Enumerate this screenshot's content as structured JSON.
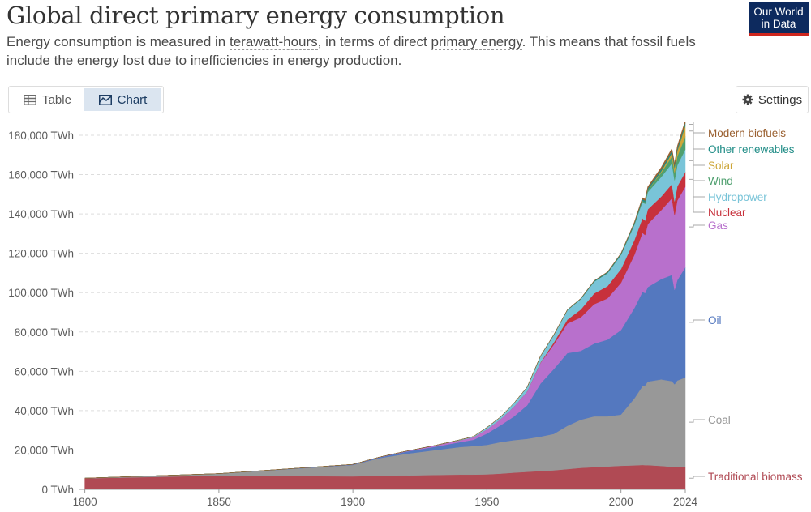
{
  "header": {
    "title": "Global direct primary energy consumption",
    "subtitle_p1": "Energy consumption is measured in ",
    "subtitle_link1": "terawatt-hours",
    "subtitle_p2": ", in terms of direct ",
    "subtitle_link2": "primary energy",
    "subtitle_p3": ". This means that fossil fuels include the energy lost due to inefficiencies in energy production.",
    "logo_line1": "Our World",
    "logo_line2": "in Data"
  },
  "tabs": [
    {
      "label": "Table",
      "icon": "table-icon",
      "active": false
    },
    {
      "label": "Chart",
      "icon": "chart-icon",
      "active": true
    }
  ],
  "settings_label": "Settings",
  "colors": {
    "traditional_biomass": "#b04a54",
    "coal": "#989898",
    "oil": "#5478bf",
    "gas": "#b870cc",
    "nuclear": "#c7313c",
    "hydropower": "#79c4d8",
    "wind": "#4fa06f",
    "solar": "#cda638",
    "other_renewables": "#1f8c86",
    "modern_biofuels": "#9a6030",
    "grid": "#dddddd",
    "axis_text": "#5b5b5b"
  },
  "chart_data": {
    "type": "area",
    "stacked": true,
    "x": [
      1800,
      1850,
      1900,
      1910,
      1920,
      1930,
      1940,
      1945,
      1950,
      1955,
      1960,
      1965,
      1970,
      1975,
      1980,
      1985,
      1990,
      1995,
      2000,
      2005,
      2008,
      2009,
      2010,
      2015,
      2019,
      2020,
      2021,
      2024
    ],
    "xticks": [
      "1800",
      "1850",
      "1900",
      "1950",
      "2000",
      "2024"
    ],
    "ylim": [
      0,
      180000
    ],
    "yticks": [
      "0 TWh",
      "20,000 TWh",
      "40,000 TWh",
      "60,000 TWh",
      "80,000 TWh",
      "100,000 TWh",
      "120,000 TWh",
      "140,000 TWh",
      "160,000 TWh",
      "180,000 TWh"
    ],
    "grid": true,
    "legend": "right (inline labels)",
    "series": [
      {
        "name": "Traditional biomass",
        "key": "traditional_biomass",
        "values": [
          5600,
          7000,
          6600,
          6900,
          7100,
          7300,
          7500,
          7500,
          7600,
          8000,
          8500,
          8900,
          9300,
          9700,
          10300,
          10900,
          11300,
          11600,
          12000,
          12200,
          12400,
          12300,
          12300,
          11900,
          11500,
          11400,
          11300,
          11400
        ]
      },
      {
        "name": "Coal",
        "key": "coal",
        "values": [
          100,
          1000,
          5800,
          9000,
          11000,
          12500,
          14000,
          14500,
          15000,
          16000,
          16500,
          16800,
          17500,
          18500,
          22000,
          24500,
          25800,
          25500,
          26000,
          34000,
          40000,
          40500,
          42500,
          44000,
          43500,
          42000,
          44000,
          45500
        ]
      },
      {
        "name": "Oil",
        "key": "oil",
        "values": [
          0,
          0,
          200,
          400,
          1100,
          1700,
          2500,
          3200,
          5800,
          8500,
          12000,
          17000,
          27000,
          33000,
          37000,
          35000,
          37000,
          39000,
          43000,
          46000,
          48000,
          47000,
          48000,
          51000,
          54000,
          48000,
          51000,
          56000
        ]
      },
      {
        "name": "Gas",
        "key": "gas",
        "values": [
          0,
          0,
          70,
          150,
          250,
          600,
          900,
          1300,
          2100,
          3000,
          4900,
          7000,
          10500,
          12500,
          15000,
          17000,
          20000,
          21000,
          24000,
          27000,
          30000,
          29500,
          32000,
          35000,
          39000,
          38000,
          40500,
          41000
        ]
      },
      {
        "name": "Nuclear",
        "key": "nuclear",
        "values": [
          0,
          0,
          0,
          0,
          0,
          0,
          0,
          0,
          0,
          0,
          0,
          100,
          230,
          1050,
          2000,
          4000,
          5500,
          6200,
          7000,
          7500,
          7400,
          7300,
          7500,
          6900,
          7200,
          7000,
          7200,
          7400
        ]
      },
      {
        "name": "Hydropower",
        "key": "hydropower",
        "values": [
          0,
          0,
          0,
          0,
          0,
          0,
          300,
          400,
          950,
          1200,
          1800,
          2200,
          3200,
          3800,
          4800,
          5300,
          6000,
          6600,
          7200,
          7800,
          8400,
          8500,
          8800,
          10000,
          10500,
          10700,
          10700,
          11500
        ]
      },
      {
        "name": "Wind",
        "key": "wind",
        "values": [
          0,
          0,
          0,
          0,
          0,
          0,
          0,
          0,
          0,
          0,
          0,
          0,
          0,
          0,
          0,
          0,
          10,
          20,
          80,
          280,
          550,
          750,
          900,
          2200,
          3500,
          4000,
          4500,
          6600
        ]
      },
      {
        "name": "Solar",
        "key": "solar",
        "values": [
          0,
          0,
          0,
          0,
          0,
          0,
          0,
          0,
          0,
          0,
          0,
          0,
          0,
          0,
          0,
          0,
          0,
          0,
          0,
          10,
          30,
          50,
          80,
          650,
          1800,
          2300,
          2800,
          5500
        ]
      },
      {
        "name": "Other renewables",
        "key": "other_renewables",
        "values": [
          0,
          0,
          0,
          0,
          0,
          0,
          0,
          0,
          0,
          0,
          0,
          0,
          100,
          150,
          200,
          300,
          400,
          500,
          600,
          700,
          800,
          850,
          900,
          1050,
          1150,
          1200,
          1250,
          1350
        ]
      },
      {
        "name": "Modern biofuels",
        "key": "modern_biofuels",
        "values": [
          0,
          0,
          0,
          0,
          0,
          0,
          0,
          0,
          0,
          0,
          0,
          0,
          0,
          0,
          0,
          50,
          100,
          150,
          200,
          350,
          700,
          750,
          850,
          1000,
          1150,
          1050,
          1150,
          1250
        ]
      }
    ]
  }
}
